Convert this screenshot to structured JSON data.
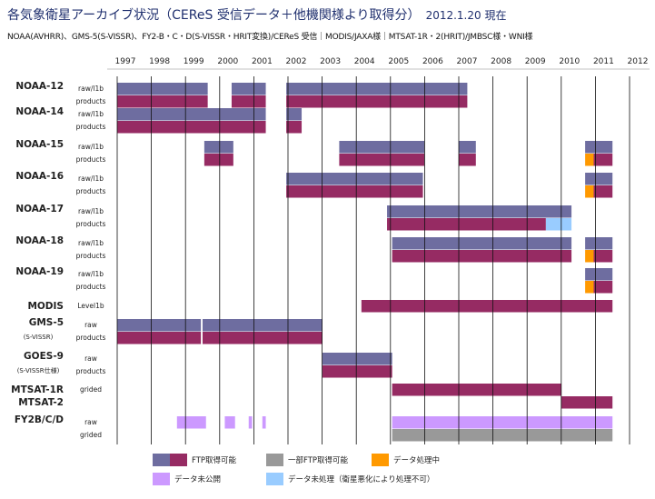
{
  "title": "各気象衛星アーカイブ状況（CEReS 受信データ＋他機関様より取得分）",
  "date": "2012.1.20 現在",
  "subtitle": "NOAA(AVHRR)、GMS-5(S-VISSR)、FY2-B・C・D(S-VISSR・HRIT変換)/CEReS 受信｜MODIS/JAXA様｜MTSAT-1R・2(HRIT)/JMBSC様・WNI様",
  "chart_data": {
    "type": "gantt",
    "years": [
      "1997",
      "1998",
      "1999",
      "2000",
      "2001",
      "2002",
      "2003",
      "2004",
      "2005",
      "2006",
      "2007",
      "2008",
      "2009",
      "2010",
      "2011",
      "2012"
    ],
    "x_range": [
      1997,
      2012
    ],
    "colors": {
      "ftp_top": "#6e6da0",
      "ftp_bottom": "#962b63",
      "partial": "#999999",
      "processing": "#ff9900",
      "unpublished": "#cc99ff",
      "unprocessed": "#99ccff"
    },
    "legend": [
      {
        "key": "ftp",
        "label": "FTP取得可能"
      },
      {
        "key": "partial",
        "label": "一部FTP取得可能"
      },
      {
        "key": "processing",
        "label": "データ処理中"
      },
      {
        "key": "unpublished",
        "label": "データ未公開"
      },
      {
        "key": "unprocessed",
        "label": "データ未処理（衛星悪化により処理不可）"
      }
    ],
    "satellites": [
      {
        "name": "NOAA-12",
        "rows": [
          {
            "label": "raw/l1b",
            "bars": [
              {
                "s": 1997.0,
                "e": 1999.65,
                "c": "ftp_top"
              },
              {
                "s": 2000.35,
                "e": 2001.35,
                "c": "ftp_top"
              },
              {
                "s": 2001.95,
                "e": 2007.25,
                "c": "ftp_top"
              }
            ]
          },
          {
            "label": "products",
            "bars": [
              {
                "s": 1997.0,
                "e": 1999.65,
                "c": "ftp_bottom"
              },
              {
                "s": 2000.35,
                "e": 2001.35,
                "c": "ftp_bottom"
              },
              {
                "s": 2001.95,
                "e": 2007.25,
                "c": "ftp_bottom"
              }
            ]
          }
        ]
      },
      {
        "name": "NOAA-14",
        "rows": [
          {
            "label": "raw/l1b",
            "bars": [
              {
                "s": 1997.0,
                "e": 2001.35,
                "c": "ftp_top"
              },
              {
                "s": 2001.95,
                "e": 2002.4,
                "c": "ftp_top"
              }
            ]
          },
          {
            "label": "products",
            "bars": [
              {
                "s": 1997.0,
                "e": 2001.35,
                "c": "ftp_bottom"
              },
              {
                "s": 2001.95,
                "e": 2002.4,
                "c": "ftp_bottom"
              }
            ]
          }
        ]
      },
      {
        "name": "NOAA-15",
        "rows": [
          {
            "label": "raw/l1b",
            "bars": [
              {
                "s": 1999.55,
                "e": 2000.4,
                "c": "ftp_top"
              },
              {
                "s": 2003.5,
                "e": 2006.0,
                "c": "ftp_top"
              },
              {
                "s": 2007.0,
                "e": 2007.5,
                "c": "ftp_top"
              },
              {
                "s": 2010.7,
                "e": 2011.5,
                "c": "ftp_top"
              }
            ]
          },
          {
            "label": "products",
            "bars": [
              {
                "s": 1999.55,
                "e": 2000.4,
                "c": "ftp_bottom"
              },
              {
                "s": 2003.5,
                "e": 2006.0,
                "c": "ftp_bottom"
              },
              {
                "s": 2007.0,
                "e": 2007.5,
                "c": "ftp_bottom"
              },
              {
                "s": 2010.7,
                "e": 2010.95,
                "c": "processing"
              },
              {
                "s": 2010.95,
                "e": 2011.5,
                "c": "ftp_bottom"
              }
            ]
          }
        ]
      },
      {
        "name": "NOAA-16",
        "rows": [
          {
            "label": "raw/l1b",
            "bars": [
              {
                "s": 2001.95,
                "e": 2005.95,
                "c": "ftp_top"
              },
              {
                "s": 2010.7,
                "e": 2011.5,
                "c": "ftp_top"
              }
            ]
          },
          {
            "label": "products",
            "bars": [
              {
                "s": 2001.95,
                "e": 2005.95,
                "c": "ftp_bottom"
              },
              {
                "s": 2010.7,
                "e": 2010.95,
                "c": "processing"
              },
              {
                "s": 2010.95,
                "e": 2011.5,
                "c": "ftp_bottom"
              }
            ]
          }
        ]
      },
      {
        "name": "NOAA-17",
        "rows": [
          {
            "label": "raw/l1b",
            "bars": [
              {
                "s": 2004.9,
                "e": 2010.3,
                "c": "ftp_top"
              }
            ]
          },
          {
            "label": "products",
            "bars": [
              {
                "s": 2004.9,
                "e": 2009.55,
                "c": "ftp_bottom"
              },
              {
                "s": 2009.55,
                "e": 2010.3,
                "c": "unprocessed"
              }
            ]
          }
        ]
      },
      {
        "name": "NOAA-18",
        "rows": [
          {
            "label": "raw/l1b",
            "bars": [
              {
                "s": 2005.05,
                "e": 2010.3,
                "c": "ftp_top"
              },
              {
                "s": 2010.7,
                "e": 2011.5,
                "c": "ftp_top"
              }
            ]
          },
          {
            "label": "products",
            "bars": [
              {
                "s": 2005.05,
                "e": 2010.3,
                "c": "ftp_bottom"
              },
              {
                "s": 2010.7,
                "e": 2010.95,
                "c": "processing"
              },
              {
                "s": 2010.95,
                "e": 2011.5,
                "c": "ftp_bottom"
              }
            ]
          }
        ]
      },
      {
        "name": "NOAA-19",
        "rows": [
          {
            "label": "raw/l1b",
            "bars": [
              {
                "s": 2010.7,
                "e": 2011.5,
                "c": "ftp_top"
              }
            ]
          },
          {
            "label": "products",
            "bars": [
              {
                "s": 2010.7,
                "e": 2010.95,
                "c": "processing"
              },
              {
                "s": 2010.95,
                "e": 2011.5,
                "c": "ftp_bottom"
              }
            ]
          }
        ]
      },
      {
        "name": "MODIS",
        "rows": [
          {
            "label": "Level1b",
            "bars": [
              {
                "s": 2004.15,
                "e": 2011.5,
                "c": "ftp_bottom"
              }
            ]
          }
        ]
      },
      {
        "name": "GMS-5",
        "sub": "(S-VISSR)",
        "rows": [
          {
            "label": "raw",
            "bars": [
              {
                "s": 1997.0,
                "e": 1999.45,
                "c": "ftp_top"
              },
              {
                "s": 1999.5,
                "e": 2003.0,
                "c": "ftp_top"
              }
            ]
          },
          {
            "label": "products",
            "bars": [
              {
                "s": 1997.0,
                "e": 1999.45,
                "c": "ftp_bottom"
              },
              {
                "s": 1999.5,
                "e": 2003.0,
                "c": "ftp_bottom"
              }
            ]
          }
        ]
      },
      {
        "name": "GOES-9",
        "sub": "(S-VISSR仕様)",
        "rows": [
          {
            "label": "raw",
            "bars": [
              {
                "s": 2003.0,
                "e": 2005.05,
                "c": "ftp_top"
              }
            ]
          },
          {
            "label": "products",
            "bars": [
              {
                "s": 2003.0,
                "e": 2005.05,
                "c": "ftp_bottom"
              }
            ]
          }
        ]
      },
      {
        "name": "MTSAT-1R",
        "rows": [
          {
            "label": "grided",
            "bars": [
              {
                "s": 2005.05,
                "e": 2010.0,
                "c": "ftp_bottom"
              }
            ]
          }
        ]
      },
      {
        "name": "MTSAT-2",
        "rows": [
          {
            "label": "",
            "bars": [
              {
                "s": 2010.0,
                "e": 2011.5,
                "c": "ftp_bottom"
              }
            ]
          }
        ]
      },
      {
        "name": "FY2B/C/D",
        "rows": [
          {
            "label": "raw",
            "bars": [
              {
                "s": 1998.75,
                "e": 1999.6,
                "c": "unpublished"
              },
              {
                "s": 2000.15,
                "e": 2000.45,
                "c": "unpublished"
              },
              {
                "s": 2000.85,
                "e": 2000.95,
                "c": "unpublished"
              },
              {
                "s": 2001.25,
                "e": 2001.35,
                "c": "unpublished"
              },
              {
                "s": 2005.05,
                "e": 2011.5,
                "c": "unpublished"
              }
            ]
          },
          {
            "label": "grided",
            "bars": [
              {
                "s": 2005.05,
                "e": 2011.5,
                "c": "partial"
              }
            ]
          }
        ]
      }
    ]
  }
}
